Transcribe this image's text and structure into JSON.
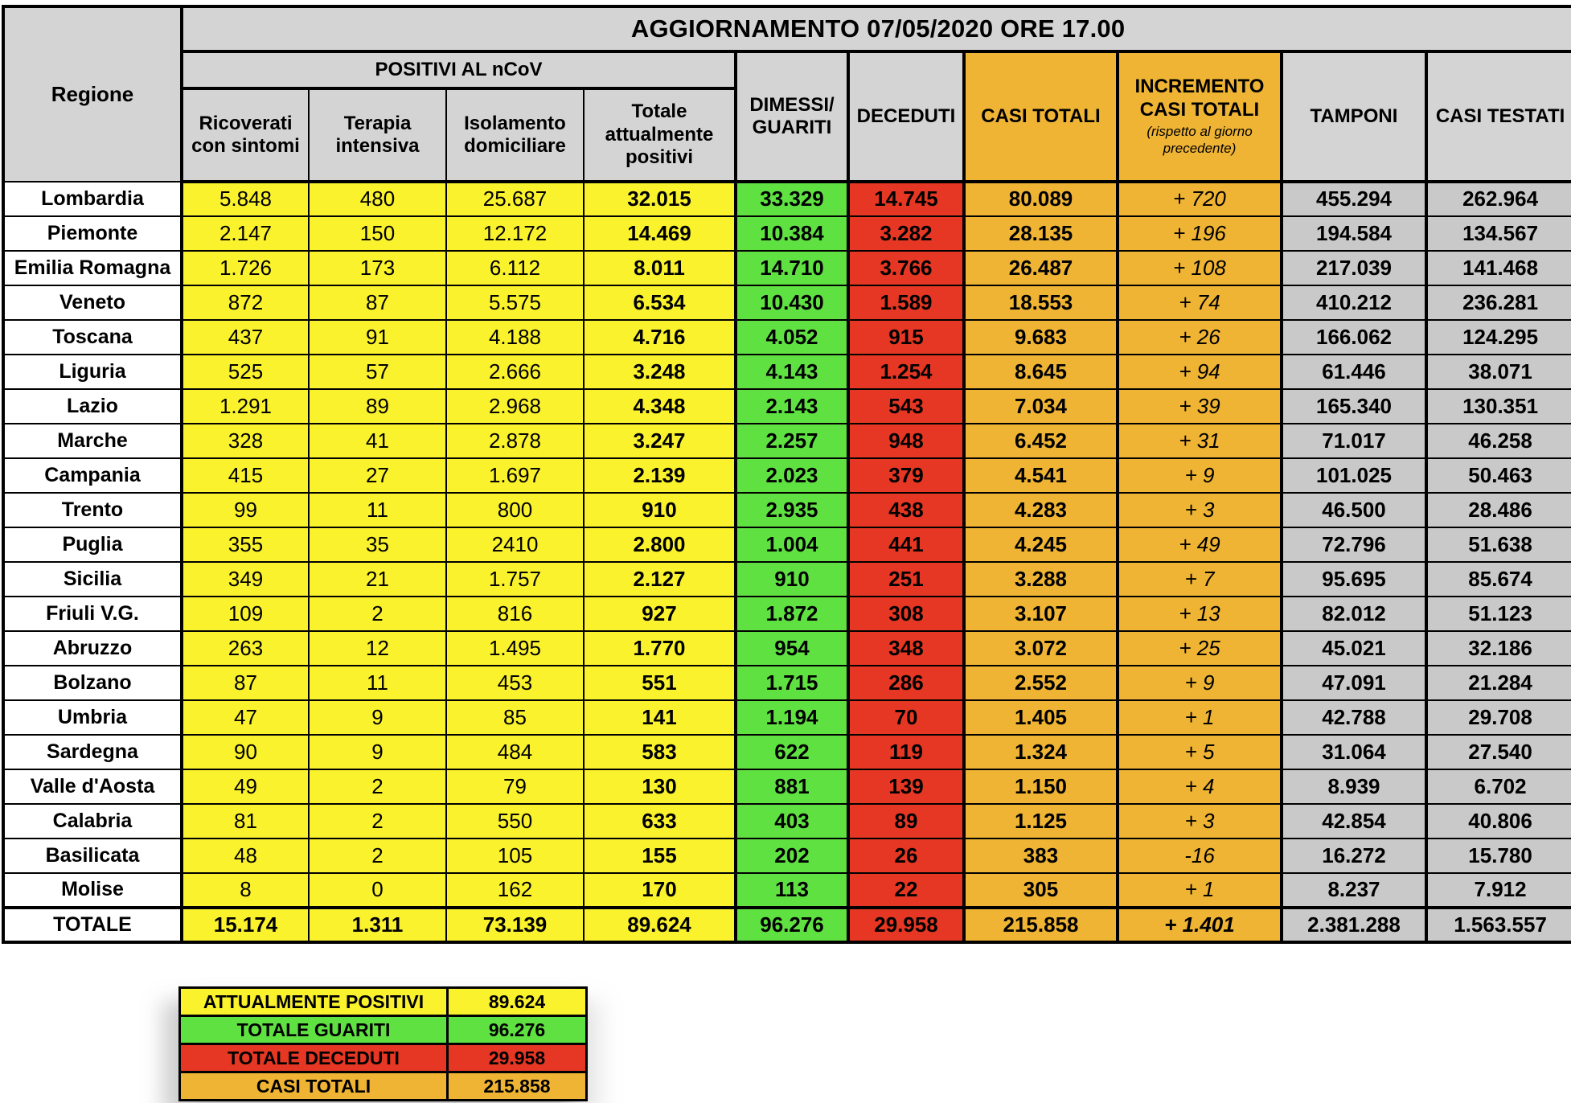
{
  "title": "AGGIORNAMENTO 07/05/2020 ORE 17.00",
  "header": {
    "regione": "Regione",
    "positivi_group": "POSITIVI AL nCoV",
    "ricoverati": "Ricoverati\ncon sintomi",
    "terapia": "Terapia\nintensiva",
    "isolamento": "Isolamento\ndomiciliare",
    "totale_positivi": "Totale\nattualmente\npositivi",
    "dimessi": "DIMESSI/\nGUARITI",
    "deceduti": "DECEDUTI",
    "casi_totali": "CASI TOTALI",
    "incremento": "INCREMENTO\nCASI TOTALI",
    "incremento_note": "(rispetto al giorno\nprecedente)",
    "tamponi": "TAMPONI",
    "casi_testati": "CASI TESTATI"
  },
  "rows": [
    [
      "Lombardia",
      "5.848",
      "480",
      "25.687",
      "32.015",
      "33.329",
      "14.745",
      "80.089",
      "+ 720",
      "455.294",
      "262.964"
    ],
    [
      "Piemonte",
      "2.147",
      "150",
      "12.172",
      "14.469",
      "10.384",
      "3.282",
      "28.135",
      "+ 196",
      "194.584",
      "134.567"
    ],
    [
      "Emilia Romagna",
      "1.726",
      "173",
      "6.112",
      "8.011",
      "14.710",
      "3.766",
      "26.487",
      "+ 108",
      "217.039",
      "141.468"
    ],
    [
      "Veneto",
      "872",
      "87",
      "5.575",
      "6.534",
      "10.430",
      "1.589",
      "18.553",
      "+ 74",
      "410.212",
      "236.281"
    ],
    [
      "Toscana",
      "437",
      "91",
      "4.188",
      "4.716",
      "4.052",
      "915",
      "9.683",
      "+ 26",
      "166.062",
      "124.295"
    ],
    [
      "Liguria",
      "525",
      "57",
      "2.666",
      "3.248",
      "4.143",
      "1.254",
      "8.645",
      "+ 94",
      "61.446",
      "38.071"
    ],
    [
      "Lazio",
      "1.291",
      "89",
      "2.968",
      "4.348",
      "2.143",
      "543",
      "7.034",
      "+ 39",
      "165.340",
      "130.351"
    ],
    [
      "Marche",
      "328",
      "41",
      "2.878",
      "3.247",
      "2.257",
      "948",
      "6.452",
      "+ 31",
      "71.017",
      "46.258"
    ],
    [
      "Campania",
      "415",
      "27",
      "1.697",
      "2.139",
      "2.023",
      "379",
      "4.541",
      "+ 9",
      "101.025",
      "50.463"
    ],
    [
      "Trento",
      "99",
      "11",
      "800",
      "910",
      "2.935",
      "438",
      "4.283",
      "+ 3",
      "46.500",
      "28.486"
    ],
    [
      "Puglia",
      "355",
      "35",
      "2410",
      "2.800",
      "1.004",
      "441",
      "4.245",
      "+ 49",
      "72.796",
      "51.638"
    ],
    [
      "Sicilia",
      "349",
      "21",
      "1.757",
      "2.127",
      "910",
      "251",
      "3.288",
      "+ 7",
      "95.695",
      "85.674"
    ],
    [
      "Friuli V.G.",
      "109",
      "2",
      "816",
      "927",
      "1.872",
      "308",
      "3.107",
      "+ 13",
      "82.012",
      "51.123"
    ],
    [
      "Abruzzo",
      "263",
      "12",
      "1.495",
      "1.770",
      "954",
      "348",
      "3.072",
      "+ 25",
      "45.021",
      "32.186"
    ],
    [
      "Bolzano",
      "87",
      "11",
      "453",
      "551",
      "1.715",
      "286",
      "2.552",
      "+ 9",
      "47.091",
      "21.284"
    ],
    [
      "Umbria",
      "47",
      "9",
      "85",
      "141",
      "1.194",
      "70",
      "1.405",
      "+ 1",
      "42.788",
      "29.708"
    ],
    [
      "Sardegna",
      "90",
      "9",
      "484",
      "583",
      "622",
      "119",
      "1.324",
      "+ 5",
      "31.064",
      "27.540"
    ],
    [
      "Valle d'Aosta",
      "49",
      "2",
      "79",
      "130",
      "881",
      "139",
      "1.150",
      "+ 4",
      "8.939",
      "6.702"
    ],
    [
      "Calabria",
      "81",
      "2",
      "550",
      "633",
      "403",
      "89",
      "1.125",
      "+ 3",
      "42.854",
      "40.806"
    ],
    [
      "Basilicata",
      "48",
      "2",
      "105",
      "155",
      "202",
      "26",
      "383",
      "-16",
      "16.272",
      "15.780"
    ],
    [
      "Molise",
      "8",
      "0",
      "162",
      "170",
      "113",
      "22",
      "305",
      "+ 1",
      "8.237",
      "7.912"
    ]
  ],
  "totale": [
    "TOTALE",
    "15.174",
    "1.311",
    "73.139",
    "89.624",
    "96.276",
    "29.958",
    "215.858",
    "+ 1.401",
    "2.381.288",
    "1.563.557"
  ],
  "summary": {
    "rows": [
      {
        "label": "ATTUALMENTE POSITIVI",
        "value": "89.624",
        "color": "#faf22d"
      },
      {
        "label": "TOTALE GUARITI",
        "value": "96.276",
        "color": "#5fe142"
      },
      {
        "label": "TOTALE DECEDUTI",
        "value": "29.958",
        "color": "#e53723"
      },
      {
        "label": "CASI TOTALI",
        "value": "215.858",
        "color": "#efb434"
      }
    ]
  },
  "colors": {
    "header_gray": "#d4d4d4",
    "positivi_yellow": "#faf22d",
    "guariti_green": "#5fe142",
    "deceduti_red": "#e53723",
    "casi_totali_orange": "#efb434",
    "tamponi_gray": "#c9c9c9",
    "border_black": "#000000"
  }
}
